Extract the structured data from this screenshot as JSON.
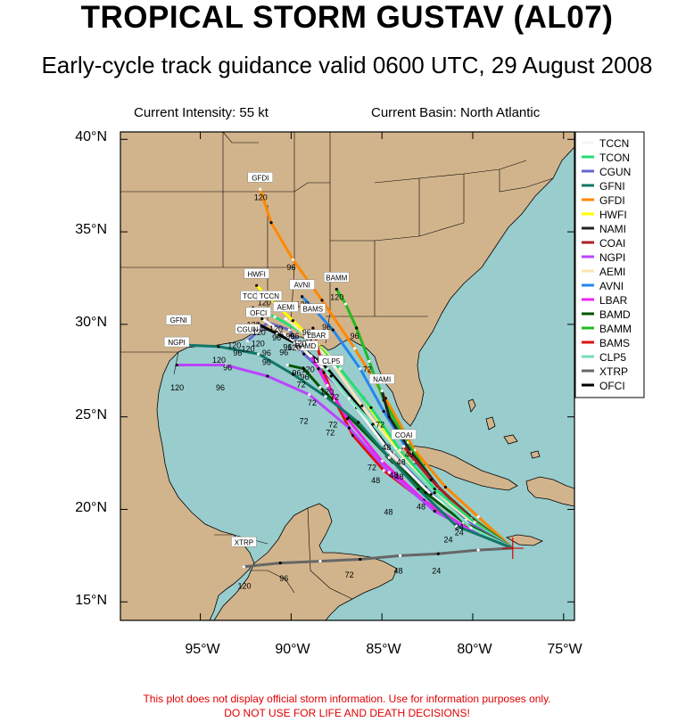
{
  "title": "TROPICAL STORM GUSTAV (AL07)",
  "subtitle": "Early-cycle track guidance valid 0600 UTC, 29 August 2008",
  "info": {
    "intensity": "Current Intensity: 55 kt",
    "basin": "Current Basin: North Atlantic"
  },
  "disclaimer": {
    "line1": "This plot does not display official storm information. Use for information purposes only.",
    "line2": "DO NOT USE FOR LIFE AND DEATH DECISIONS!"
  },
  "colors": {
    "ocean": "#99cccc",
    "land": "#d2b48c",
    "border": "#000000"
  },
  "axes": {
    "lat_labels": [
      "40°N",
      "35°N",
      "30°N",
      "25°N",
      "20°N",
      "15°N"
    ],
    "lon_labels": [
      "95°W",
      "90°W",
      "85°W",
      "80°W",
      "75°W"
    ],
    "lat_range": [
      14,
      40.4
    ],
    "lon_range": [
      -99.4,
      -74.4
    ]
  },
  "storm_position": {
    "lat": 17.9,
    "lon": -77.8
  },
  "legend": [
    {
      "name": "TCCN",
      "color": "#f5f5f5"
    },
    {
      "name": "TCON",
      "color": "#22dd77"
    },
    {
      "name": "CGUN",
      "color": "#6666cc"
    },
    {
      "name": "GFNI",
      "color": "#117766"
    },
    {
      "name": "GFDI",
      "color": "#ff8800"
    },
    {
      "name": "HWFI",
      "color": "#ffff00"
    },
    {
      "name": "NAMI",
      "color": "#222222"
    },
    {
      "name": "COAI",
      "color": "#aa2222"
    },
    {
      "name": "NGPI",
      "color": "#bb44ff"
    },
    {
      "name": "AEMI",
      "color": "#ffe4b5"
    },
    {
      "name": "AVNI",
      "color": "#2288ee"
    },
    {
      "name": "LBAR",
      "color": "#ee22ee"
    },
    {
      "name": "BAMD",
      "color": "#005500"
    },
    {
      "name": "BAMM",
      "color": "#22bb22"
    },
    {
      "name": "BAMS",
      "color": "#dd1111"
    },
    {
      "name": "CLP5",
      "color": "#77ddbb"
    },
    {
      "name": "XTRP",
      "color": "#666666"
    },
    {
      "name": "OFCI",
      "color": "#000000"
    }
  ],
  "tracks": [
    {
      "name": "GFDI",
      "color": "#ff8800",
      "pts": [
        [
          -77.8,
          17.9
        ],
        [
          -79.7,
          19.6
        ],
        [
          -81.5,
          21.2
        ],
        [
          -83.2,
          23.2
        ],
        [
          -84.8,
          26.0
        ],
        [
          -86.5,
          28.7
        ],
        [
          -88.3,
          31.3
        ],
        [
          -89.9,
          33.5
        ],
        [
          -91.1,
          35.5
        ],
        [
          -91.7,
          37.3
        ]
      ],
      "labels": [
        {
          "t": "120",
          "at": [
            -91.7,
            37.3
          ]
        },
        {
          "t": "96",
          "at": [
            -89.9,
            33.5
          ]
        }
      ],
      "tag": {
        "t": "GFDI",
        "at": [
          -91.7,
          37.3
        ]
      }
    },
    {
      "name": "AVNI",
      "color": "#2288ee",
      "pts": [
        [
          -77.8,
          17.9
        ],
        [
          -79.6,
          19.2
        ],
        [
          -81.3,
          20.6
        ],
        [
          -83.2,
          22.6
        ],
        [
          -84.9,
          25.3
        ],
        [
          -86.2,
          27.6
        ],
        [
          -87.7,
          29.7
        ],
        [
          -88.8,
          30.9
        ],
        [
          -89.4,
          31.5
        ]
      ],
      "labels": [
        {
          "t": "120",
          "at": [
            -89.4,
            31.5
          ]
        }
      ],
      "tag": {
        "t": "AVNI",
        "at": [
          -89.4,
          31.5
        ]
      }
    },
    {
      "name": "BAMM",
      "color": "#22bb22",
      "pts": [
        [
          -77.8,
          17.9
        ],
        [
          -80.1,
          19.6
        ],
        [
          -82.0,
          21.3
        ],
        [
          -83.6,
          23.6
        ],
        [
          -84.9,
          25.9
        ],
        [
          -85.7,
          28.0
        ],
        [
          -86.4,
          29.8
        ],
        [
          -87.0,
          31.1
        ],
        [
          -87.5,
          31.9
        ]
      ],
      "labels": [
        {
          "t": "120",
          "at": [
            -87.5,
            31.9
          ]
        },
        {
          "t": "96",
          "at": [
            -86.4,
            29.8
          ]
        },
        {
          "t": "72",
          "at": [
            -85.7,
            28.0
          ]
        }
      ],
      "tag": {
        "t": "BAMM",
        "at": [
          -87.5,
          31.9
        ]
      }
    },
    {
      "name": "NAMI",
      "color": "#222222",
      "pts": [
        [
          -77.8,
          17.9
        ],
        [
          -79.8,
          19.3
        ],
        [
          -81.8,
          21.1
        ],
        [
          -83.4,
          23.1
        ],
        [
          -84.6,
          25.0
        ],
        [
          -85.0,
          26.4
        ]
      ],
      "labels": [
        {
          "t": "72",
          "at": [
            -85.0,
            25.0
          ]
        }
      ],
      "tag": {
        "t": "NAMI",
        "at": [
          -85.0,
          26.4
        ]
      }
    },
    {
      "name": "COAI",
      "color": "#aa2222",
      "pts": [
        [
          -77.8,
          17.9
        ],
        [
          -80.1,
          19.5
        ],
        [
          -82.3,
          21.6
        ],
        [
          -83.8,
          23.4
        ]
      ],
      "labels": [
        {
          "t": "48",
          "at": [
            -83.4,
            23.4
          ]
        }
      ],
      "tag": {
        "t": "COAI",
        "at": [
          -83.8,
          23.4
        ]
      }
    },
    {
      "name": "HWFI",
      "color": "#ffff00",
      "pts": [
        [
          -77.8,
          17.9
        ],
        [
          -79.8,
          19.0
        ],
        [
          -82.2,
          20.9
        ],
        [
          -84.2,
          23.3
        ],
        [
          -86.0,
          26.0
        ],
        [
          -87.9,
          28.3
        ],
        [
          -89.9,
          30.2
        ],
        [
          -91.4,
          31.6
        ],
        [
          -91.9,
          32.1
        ]
      ],
      "labels": [
        {
          "t": "120",
          "at": [
            -91.5,
            31.6
          ]
        }
      ],
      "tag": {
        "t": "HWFI",
        "at": [
          -91.9,
          32.1
        ]
      }
    },
    {
      "name": "TCON",
      "color": "#22dd77",
      "pts": [
        [
          -77.8,
          17.9
        ],
        [
          -79.9,
          19.3
        ],
        [
          -82.1,
          21.1
        ],
        [
          -84.0,
          23.2
        ],
        [
          -85.6,
          25.5
        ],
        [
          -87.3,
          27.6
        ],
        [
          -89.1,
          29.4
        ],
        [
          -90.9,
          30.4
        ],
        [
          -92.1,
          30.9
        ]
      ],
      "labels": [
        {
          "t": "120",
          "at": [
            -92.1,
            30.4
          ]
        },
        {
          "t": "96",
          "at": [
            -90.7,
            29.7
          ]
        }
      ],
      "tag": {
        "t": "TCON",
        "at": [
          -92.1,
          30.9
        ]
      }
    },
    {
      "name": "AEMI",
      "color": "#ffe4b5",
      "pts": [
        [
          -77.8,
          17.9
        ],
        [
          -80.0,
          19.2
        ],
        [
          -82.2,
          21.0
        ],
        [
          -84.3,
          23.3
        ],
        [
          -86.1,
          25.6
        ],
        [
          -87.6,
          27.7
        ],
        [
          -88.9,
          29.2
        ],
        [
          -90.3,
          30.3
        ]
      ],
      "labels": [
        {
          "t": "96",
          "at": [
            -89.7,
            29.8
          ]
        }
      ],
      "tag": {
        "t": "AEMI",
        "at": [
          -90.3,
          30.3
        ]
      }
    },
    {
      "name": "CGUN",
      "color": "#6666cc",
      "pts": [
        [
          -77.8,
          17.9
        ],
        [
          -80.4,
          19.4
        ],
        [
          -82.6,
          21.2
        ],
        [
          -84.3,
          23.1
        ],
        [
          -86.5,
          25.8
        ],
        [
          -88.2,
          27.4
        ],
        [
          -89.3,
          28.4
        ],
        [
          -90.1,
          29.7
        ],
        [
          -91.3,
          30.1
        ],
        [
          -92.4,
          29.1
        ]
      ],
      "labels": [
        {
          "t": "120",
          "at": [
            -92.4,
            29.1
          ]
        },
        {
          "t": "96",
          "at": [
            -90.1,
            29.2
          ]
        }
      ],
      "tag": {
        "t": "CGUN",
        "at": [
          -92.4,
          29.1
        ]
      }
    },
    {
      "name": "OFCI",
      "color": "#000000",
      "pts": [
        [
          -77.8,
          17.9
        ],
        [
          -80.3,
          19.2
        ],
        [
          -82.5,
          20.9
        ],
        [
          -84.4,
          22.9
        ],
        [
          -86.3,
          25.6
        ],
        [
          -88.0,
          27.6
        ],
        [
          -89.6,
          28.9
        ],
        [
          -90.8,
          29.5
        ],
        [
          -91.8,
          30.0
        ]
      ],
      "labels": [
        {
          "t": "120",
          "at": [
            -91.8,
            30.0
          ]
        },
        {
          "t": "96",
          "at": [
            -90.3,
            28.9
          ]
        }
      ],
      "tag": {
        "t": "OFCI",
        "at": [
          -91.8,
          30.0
        ]
      }
    },
    {
      "name": "TCCN",
      "color": "#f5f5f5",
      "pts": [
        [
          -77.8,
          17.9
        ],
        [
          -80.1,
          19.1
        ],
        [
          -82.3,
          20.8
        ],
        [
          -84.5,
          23.0
        ],
        [
          -86.4,
          25.5
        ],
        [
          -88.3,
          27.7
        ],
        [
          -89.7,
          29.0
        ],
        [
          -91.0,
          29.9
        ],
        [
          -91.6,
          30.3
        ]
      ],
      "labels": [],
      "tag": {
        "t": "TCCN",
        "at": [
          -91.2,
          30.9
        ]
      }
    },
    {
      "name": "BAMD",
      "color": "#005500",
      "pts": [
        [
          -77.8,
          17.9
        ],
        [
          -80.5,
          19.3
        ],
        [
          -82.6,
          20.9
        ],
        [
          -84.7,
          22.9
        ],
        [
          -86.8,
          25.0
        ],
        [
          -88.4,
          26.6
        ],
        [
          -89.3,
          27.6
        ],
        [
          -90.2,
          27.8
        ]
      ],
      "labels": [
        {
          "t": "96",
          "at": [
            -89.6,
            27.8
          ]
        }
      ],
      "tag": {
        "t": "BAMD",
        "at": [
          -89.2,
          28.2
        ]
      }
    },
    {
      "name": "BAMS",
      "color": "#dd1111",
      "pts": [
        [
          -77.8,
          17.9
        ],
        [
          -80.7,
          19.2
        ],
        [
          -82.9,
          20.6
        ],
        [
          -84.9,
          22.1
        ],
        [
          -86.6,
          24.0
        ],
        [
          -87.6,
          25.9
        ],
        [
          -88.2,
          27.4
        ],
        [
          -88.6,
          29.0
        ],
        [
          -88.8,
          29.8
        ]
      ],
      "labels": [
        {
          "t": "72",
          "at": [
            -87.6,
            25.0
          ]
        },
        {
          "t": "120",
          "at": [
            -88.5,
            28.5
          ]
        }
      ],
      "tag": {
        "t": "BAMS",
        "at": [
          -88.8,
          30.2
        ]
      }
    },
    {
      "name": "LBAR",
      "color": "#ee22ee",
      "pts": [
        [
          -77.8,
          17.9
        ],
        [
          -80.2,
          18.9
        ],
        [
          -82.7,
          20.5
        ],
        [
          -85.0,
          22.6
        ],
        [
          -86.9,
          24.9
        ],
        [
          -88.0,
          26.7
        ],
        [
          -88.5,
          27.6
        ],
        [
          -88.9,
          28.3
        ]
      ],
      "labels": [
        {
          "t": "120",
          "at": [
            -89.1,
            28.0
          ]
        }
      ],
      "tag": {
        "t": "LBAR",
        "at": [
          -88.6,
          28.8
        ]
      }
    },
    {
      "name": "CLP5",
      "color": "#77ddbb",
      "pts": [
        [
          -77.8,
          17.9
        ],
        [
          -80.1,
          19.0
        ],
        [
          -82.1,
          20.9
        ],
        [
          -83.9,
          22.7
        ],
        [
          -85.5,
          24.6
        ],
        [
          -86.8,
          26.0
        ],
        [
          -87.8,
          27.2
        ],
        [
          -88.3,
          27.7
        ]
      ],
      "labels": [
        {
          "t": "72",
          "at": [
            -87.5,
            26.5
          ]
        }
      ],
      "tag": {
        "t": "CLP5",
        "at": [
          -87.8,
          27.4
        ]
      }
    },
    {
      "name": "NGPI",
      "color": "#bb44ff",
      "pts": [
        [
          -77.8,
          17.9
        ],
        [
          -79.6,
          18.6
        ],
        [
          -82.1,
          19.9
        ],
        [
          -84.6,
          22.0
        ],
        [
          -86.8,
          24.4
        ],
        [
          -89.0,
          26.2
        ],
        [
          -91.3,
          27.2
        ],
        [
          -93.6,
          27.8
        ],
        [
          -96.3,
          27.8
        ]
      ],
      "labels": [
        {
          "t": "72",
          "at": [
            -89.2,
            25.2
          ]
        },
        {
          "t": "96",
          "at": [
            -93.8,
            27.0
          ]
        },
        {
          "t": "120",
          "at": [
            -96.3,
            27.0
          ]
        }
      ],
      "tag": {
        "t": "NGPI",
        "at": [
          -96.3,
          28.4
        ]
      }
    },
    {
      "name": "GFNI",
      "color": "#117766",
      "pts": [
        [
          -77.8,
          17.9
        ],
        [
          -80.9,
          19.1
        ],
        [
          -83.0,
          21.1
        ],
        [
          -84.6,
          22.8
        ],
        [
          -86.3,
          24.7
        ],
        [
          -88.1,
          26.1
        ],
        [
          -89.9,
          27.3
        ],
        [
          -91.8,
          28.4
        ],
        [
          -94.0,
          28.8
        ],
        [
          -96.2,
          28.9
        ]
      ],
      "labels": [
        {
          "t": "96",
          "at": [
            -93.4,
            28.1
          ]
        },
        {
          "t": "120",
          "at": [
            -94.0,
            28.5
          ]
        }
      ],
      "tag": {
        "t": "GFNI",
        "at": [
          -96.2,
          29.6
        ]
      }
    },
    {
      "name": "XTRP",
      "color": "#666666",
      "pts": [
        [
          -77.8,
          17.9
        ],
        [
          -79.7,
          17.8
        ],
        [
          -81.9,
          17.6
        ],
        [
          -84.0,
          17.5
        ],
        [
          -86.2,
          17.3
        ],
        [
          -88.4,
          17.2
        ],
        [
          -90.6,
          17.1
        ],
        [
          -92.6,
          16.9
        ]
      ],
      "labels": [
        {
          "t": "24",
          "at": [
            -81.9,
            17.1
          ]
        },
        {
          "t": "48",
          "at": [
            -84.0,
            17.1
          ]
        },
        {
          "t": "72",
          "at": [
            -86.7,
            16.9
          ]
        },
        {
          "t": "96",
          "at": [
            -90.3,
            16.7
          ]
        },
        {
          "t": "120",
          "at": [
            -92.6,
            16.3
          ]
        }
      ],
      "tag": {
        "t": "XTRP",
        "at": [
          -92.6,
          17.6
        ]
      }
    }
  ],
  "misc_labels": [
    {
      "t": "24",
      "at": [
        -80.7,
        19.1
      ]
    },
    {
      "t": "24",
      "at": [
        -81.3,
        18.4
      ]
    },
    {
      "t": "24",
      "at": [
        -80.7,
        18.8
      ]
    },
    {
      "t": "48",
      "at": [
        -82.8,
        20.2
      ]
    },
    {
      "t": "48",
      "at": [
        -84.6,
        19.9
      ]
    },
    {
      "t": "48",
      "at": [
        -84.7,
        23.4
      ]
    },
    {
      "t": "48",
      "at": [
        -84.0,
        21.8
      ]
    },
    {
      "t": "48",
      "at": [
        -83.9,
        22.6
      ]
    },
    {
      "t": "48",
      "at": [
        -84.3,
        21.9
      ]
    },
    {
      "t": "48",
      "at": [
        -85.3,
        21.6
      ]
    },
    {
      "t": "72",
      "at": [
        -85.5,
        22.3
      ]
    },
    {
      "t": "72",
      "at": [
        -87.8,
        24.2
      ]
    },
    {
      "t": "72",
      "at": [
        -88.8,
        25.8
      ]
    },
    {
      "t": "72",
      "at": [
        -89.4,
        26.8
      ]
    },
    {
      "t": "96",
      "at": [
        -89.2,
        27.2
      ]
    },
    {
      "t": "96",
      "at": [
        -91.3,
        28.0
      ]
    },
    {
      "t": "96",
      "at": [
        -91.3,
        28.5
      ]
    },
    {
      "t": "120",
      "at": [
        -89.9,
        28.8
      ]
    },
    {
      "t": "120",
      "at": [
        -88.1,
        26.4
      ]
    },
    {
      "t": "120",
      "at": [
        -91.9,
        29.0
      ]
    },
    {
      "t": "96",
      "at": [
        -90.6,
        29.5
      ]
    },
    {
      "t": "120",
      "at": [
        -89.6,
        29.0
      ]
    },
    {
      "t": "96",
      "at": [
        -88.0,
        29.9
      ]
    },
    {
      "t": "120",
      "at": [
        -90.9,
        29.8
      ]
    },
    {
      "t": "96",
      "at": [
        -90.0,
        29.4
      ]
    },
    {
      "t": "96",
      "at": [
        -89.1,
        29.6
      ]
    },
    {
      "t": "120",
      "at": [
        -93.2,
        28.9
      ]
    },
    {
      "t": "96",
      "at": [
        -92.9,
        28.5
      ]
    }
  ]
}
